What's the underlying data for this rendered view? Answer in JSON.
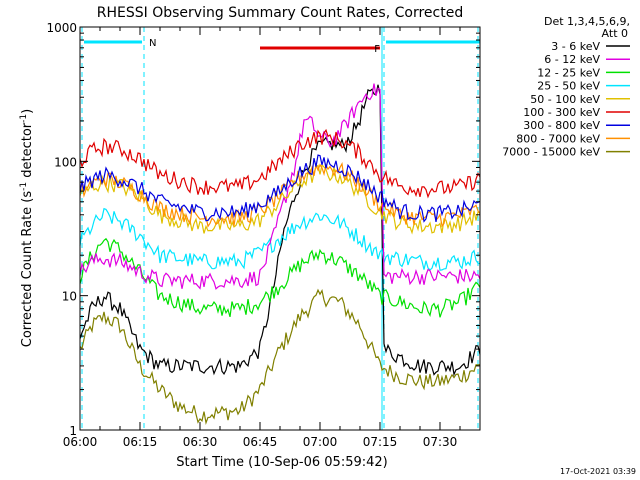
{
  "chart_data": {
    "type": "line",
    "title": "RHESSI Observing Summary Count Rates, Corrected",
    "xlabel": "Start Time (10-Sep-06 05:59:42)",
    "ylabel": "Corrected Count Rate (s⁻¹ detector⁻¹)",
    "ylabel_parts": [
      "Corrected Count Rate (s",
      "-1",
      " detector",
      "-1",
      ")"
    ],
    "x_range_minutes": [
      0,
      100
    ],
    "y_range": [
      1,
      1000
    ],
    "y_scale": "log",
    "x_ticks": [
      {
        "minute": 0,
        "label": "06:00"
      },
      {
        "minute": 15,
        "label": "06:15"
      },
      {
        "minute": 30,
        "label": "06:30"
      },
      {
        "minute": 45,
        "label": "06:45"
      },
      {
        "minute": 60,
        "label": "07:00"
      },
      {
        "minute": 75,
        "label": "07:15"
      },
      {
        "minute": 90,
        "label": "07:30"
      }
    ],
    "y_ticks": [
      {
        "value": 1,
        "label": "1"
      },
      {
        "value": 10,
        "label": "10"
      },
      {
        "value": 100,
        "label": "100"
      },
      {
        "value": 1000,
        "label": "1000"
      }
    ],
    "legend_header": [
      "Det 1,3,4,5,6,9,",
      "Att 0"
    ],
    "legend_position": "right",
    "timestamp": "17-Oct-2021 03:39",
    "bars": [
      {
        "label": "N",
        "color": "#00e5ff",
        "segments": [
          [
            1,
            15.5
          ],
          [
            76.5,
            100
          ]
        ]
      },
      {
        "label": "F",
        "color": "#e00000",
        "segments": [
          [
            45,
            75
          ]
        ]
      }
    ],
    "vlines": [
      {
        "minute": 0.5,
        "style": "dashed",
        "color": "#00e5ff"
      },
      {
        "minute": 16,
        "style": "dashed",
        "color": "#00e5ff"
      },
      {
        "minute": 75.5,
        "style": "solid",
        "color": "#00e5ff"
      },
      {
        "minute": 76,
        "style": "dashed",
        "color": "#00e5ff"
      },
      {
        "minute": 99.5,
        "style": "dashed",
        "color": "#00e5ff"
      }
    ],
    "series": [
      {
        "name": "3 - 6 keV",
        "color": "#000000",
        "points": [
          [
            0,
            5
          ],
          [
            3,
            8
          ],
          [
            6,
            10
          ],
          [
            10,
            8
          ],
          [
            15,
            4
          ],
          [
            20,
            3
          ],
          [
            30,
            3
          ],
          [
            40,
            3
          ],
          [
            45,
            4
          ],
          [
            48,
            10
          ],
          [
            51,
            30
          ],
          [
            54,
            60
          ],
          [
            57,
            100
          ],
          [
            60,
            130
          ],
          [
            63,
            135
          ],
          [
            66,
            130
          ],
          [
            69,
            180
          ],
          [
            72,
            300
          ],
          [
            75,
            360
          ],
          [
            76,
            4
          ],
          [
            80,
            3.5
          ],
          [
            85,
            3
          ],
          [
            90,
            3
          ],
          [
            95,
            3
          ],
          [
            100,
            4
          ]
        ]
      },
      {
        "name": "6 - 12 keV",
        "color": "#e000e0",
        "points": [
          [
            0,
            15
          ],
          [
            3,
            18
          ],
          [
            6,
            19
          ],
          [
            10,
            18
          ],
          [
            15,
            15
          ],
          [
            20,
            13
          ],
          [
            30,
            13
          ],
          [
            40,
            13
          ],
          [
            45,
            14
          ],
          [
            48,
            25
          ],
          [
            51,
            50
          ],
          [
            54,
            100
          ],
          [
            56,
            200
          ],
          [
            58,
            190
          ],
          [
            60,
            150
          ],
          [
            63,
            140
          ],
          [
            66,
            180
          ],
          [
            69,
            250
          ],
          [
            72,
            330
          ],
          [
            75,
            340
          ],
          [
            76,
            14
          ],
          [
            80,
            14
          ],
          [
            85,
            14
          ],
          [
            90,
            14
          ],
          [
            95,
            14
          ],
          [
            100,
            14
          ]
        ]
      },
      {
        "name": "12 - 25 keV",
        "color": "#00e000",
        "points": [
          [
            0,
            14
          ],
          [
            3,
            20
          ],
          [
            6,
            26
          ],
          [
            10,
            22
          ],
          [
            15,
            15
          ],
          [
            20,
            10
          ],
          [
            30,
            8
          ],
          [
            40,
            8
          ],
          [
            45,
            9
          ],
          [
            50,
            12
          ],
          [
            55,
            17
          ],
          [
            60,
            21
          ],
          [
            65,
            18
          ],
          [
            70,
            14
          ],
          [
            75,
            10
          ],
          [
            80,
            9
          ],
          [
            85,
            8
          ],
          [
            90,
            8
          ],
          [
            95,
            9
          ],
          [
            100,
            12
          ]
        ]
      },
      {
        "name": "25 - 50 keV",
        "color": "#00e5ff",
        "points": [
          [
            0,
            25
          ],
          [
            3,
            33
          ],
          [
            6,
            40
          ],
          [
            10,
            36
          ],
          [
            15,
            28
          ],
          [
            20,
            20
          ],
          [
            30,
            18
          ],
          [
            40,
            18
          ],
          [
            45,
            21
          ],
          [
            50,
            27
          ],
          [
            55,
            35
          ],
          [
            60,
            40
          ],
          [
            65,
            35
          ],
          [
            70,
            27
          ],
          [
            75,
            20
          ],
          [
            80,
            19
          ],
          [
            85,
            18
          ],
          [
            90,
            18
          ],
          [
            95,
            18
          ],
          [
            100,
            20
          ]
        ]
      },
      {
        "name": "50 - 100 keV",
        "color": "#e0c000",
        "points": [
          [
            0,
            55
          ],
          [
            3,
            65
          ],
          [
            6,
            70
          ],
          [
            10,
            67
          ],
          [
            15,
            55
          ],
          [
            20,
            40
          ],
          [
            30,
            33
          ],
          [
            40,
            33
          ],
          [
            45,
            37
          ],
          [
            50,
            50
          ],
          [
            55,
            70
          ],
          [
            60,
            85
          ],
          [
            65,
            78
          ],
          [
            70,
            60
          ],
          [
            75,
            42
          ],
          [
            80,
            35
          ],
          [
            85,
            33
          ],
          [
            90,
            33
          ],
          [
            95,
            35
          ],
          [
            100,
            40
          ]
        ]
      },
      {
        "name": "100 - 300 keV",
        "color": "#e00000",
        "points": [
          [
            0,
            100
          ],
          [
            3,
            120
          ],
          [
            6,
            130
          ],
          [
            10,
            125
          ],
          [
            15,
            105
          ],
          [
            20,
            80
          ],
          [
            30,
            65
          ],
          [
            40,
            65
          ],
          [
            45,
            75
          ],
          [
            50,
            100
          ],
          [
            55,
            135
          ],
          [
            60,
            155
          ],
          [
            65,
            145
          ],
          [
            70,
            115
          ],
          [
            75,
            80
          ],
          [
            80,
            65
          ],
          [
            85,
            63
          ],
          [
            90,
            63
          ],
          [
            95,
            65
          ],
          [
            100,
            75
          ]
        ]
      },
      {
        "name": "300 - 800 keV",
        "color": "#0000e0",
        "points": [
          [
            0,
            63
          ],
          [
            3,
            73
          ],
          [
            6,
            80
          ],
          [
            10,
            75
          ],
          [
            15,
            63
          ],
          [
            20,
            50
          ],
          [
            30,
            42
          ],
          [
            40,
            42
          ],
          [
            45,
            48
          ],
          [
            50,
            60
          ],
          [
            55,
            83
          ],
          [
            60,
            100
          ],
          [
            65,
            93
          ],
          [
            70,
            75
          ],
          [
            75,
            55
          ],
          [
            80,
            43
          ],
          [
            85,
            41
          ],
          [
            90,
            41
          ],
          [
            95,
            43
          ],
          [
            100,
            48
          ]
        ]
      },
      {
        "name": "800 - 7000 keV",
        "color": "#ff9000",
        "points": [
          [
            0,
            58
          ],
          [
            3,
            68
          ],
          [
            6,
            75
          ],
          [
            10,
            70
          ],
          [
            15,
            58
          ],
          [
            20,
            45
          ],
          [
            30,
            38
          ],
          [
            40,
            38
          ],
          [
            45,
            43
          ],
          [
            50,
            56
          ],
          [
            55,
            78
          ],
          [
            60,
            92
          ],
          [
            65,
            87
          ],
          [
            70,
            68
          ],
          [
            75,
            48
          ],
          [
            80,
            40
          ],
          [
            85,
            38
          ],
          [
            90,
            38
          ],
          [
            95,
            40
          ],
          [
            100,
            44
          ]
        ]
      },
      {
        "name": "7000 - 15000 keV",
        "color": "#808000",
        "points": [
          [
            0,
            4
          ],
          [
            3,
            6
          ],
          [
            6,
            7
          ],
          [
            10,
            6
          ],
          [
            15,
            3
          ],
          [
            20,
            2
          ],
          [
            25,
            1.5
          ],
          [
            30,
            1.3
          ],
          [
            40,
            1.4
          ],
          [
            45,
            2
          ],
          [
            50,
            4
          ],
          [
            55,
            7
          ],
          [
            60,
            10
          ],
          [
            65,
            9
          ],
          [
            70,
            6
          ],
          [
            75,
            3
          ],
          [
            80,
            2.5
          ],
          [
            85,
            2.3
          ],
          [
            90,
            2.3
          ],
          [
            95,
            2.5
          ],
          [
            100,
            3
          ]
        ]
      }
    ]
  }
}
